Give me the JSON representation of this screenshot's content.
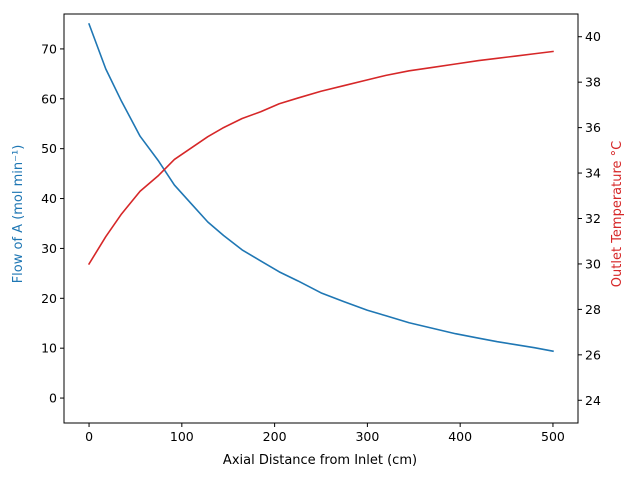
{
  "chart_data": {
    "type": "line",
    "title": "",
    "xlabel": "Axial Distance from Inlet (cm)",
    "xlim": [
      -27,
      527
    ],
    "xticks": [
      0,
      100,
      200,
      300,
      400,
      500
    ],
    "grid": false,
    "legend": "none",
    "left_axis": {
      "label": "Flow of A (mol min⁻¹)",
      "color": "#1f77b4",
      "ylim": [
        -5,
        77
      ],
      "ticks": [
        0,
        10,
        20,
        30,
        40,
        50,
        60,
        70
      ]
    },
    "right_axis": {
      "label": "Outlet Temperature °C",
      "color": "#d62728",
      "ylim": [
        23,
        41
      ],
      "ticks": [
        24,
        26,
        28,
        30,
        32,
        34,
        36,
        38,
        40
      ]
    },
    "series": [
      {
        "axis": "left",
        "color": "#1f77b4",
        "x": [
          0,
          18,
          35,
          55,
          75,
          92,
          110,
          128,
          145,
          165,
          185,
          205,
          225,
          250,
          275,
          300,
          320,
          345,
          370,
          395,
          420,
          440,
          460,
          480,
          500
        ],
        "values": [
          75,
          66,
          59.5,
          52.5,
          47.5,
          42.7,
          39,
          35.3,
          32.6,
          29.7,
          27.5,
          25.3,
          23.5,
          21.1,
          19.3,
          17.6,
          16.5,
          15.1,
          14,
          12.9,
          12,
          11.3,
          10.7,
          10.1,
          9.4
        ]
      },
      {
        "axis": "right",
        "color": "#d62728",
        "x": [
          0,
          18,
          35,
          55,
          75,
          92,
          110,
          128,
          145,
          165,
          185,
          205,
          225,
          250,
          275,
          300,
          320,
          345,
          370,
          395,
          420,
          440,
          460,
          480,
          500
        ],
        "values": [
          30,
          31.2,
          32.2,
          33.2,
          33.9,
          34.6,
          35.1,
          35.6,
          36,
          36.4,
          36.7,
          37.05,
          37.3,
          37.6,
          37.85,
          38.1,
          38.3,
          38.5,
          38.65,
          38.8,
          38.95,
          39.05,
          39.15,
          39.25,
          39.35
        ]
      }
    ]
  }
}
